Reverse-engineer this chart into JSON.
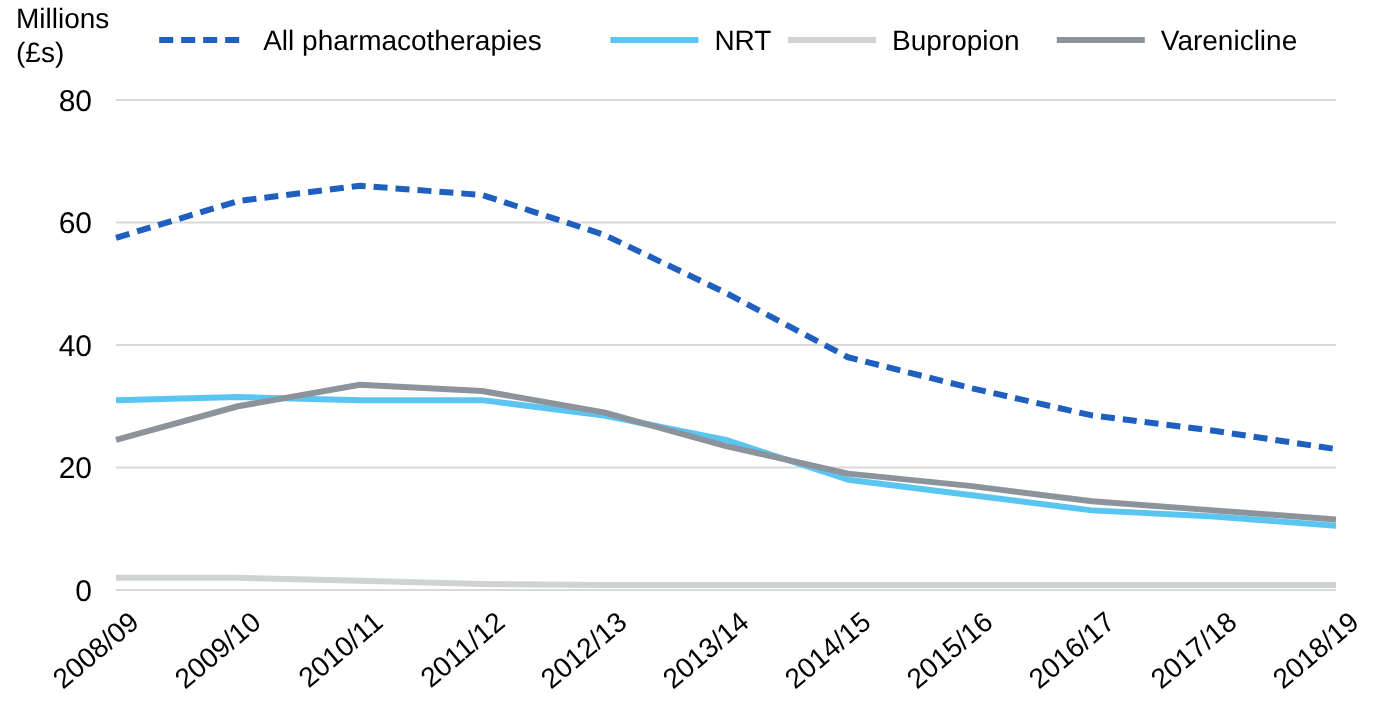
{
  "chart_data": {
    "type": "line",
    "ylabel": "Millions (£s)",
    "categories": [
      "2008/09",
      "2009/10",
      "2010/11",
      "2011/12",
      "2012/13",
      "2013/14",
      "2014/15",
      "2015/16",
      "2016/17",
      "2017/18",
      "2018/19"
    ],
    "series": [
      {
        "name": "All pharmacotherapies",
        "color": "#1f5fbf",
        "line_style": "dashed",
        "values": [
          57.5,
          63.5,
          66,
          64.5,
          58,
          48.5,
          38,
          33,
          28.5,
          26,
          23
        ]
      },
      {
        "name": "NRT",
        "color": "#5bc5f2",
        "values": [
          31,
          31.5,
          31,
          31,
          28.5,
          24.5,
          18,
          15.5,
          13,
          12,
          10.5
        ]
      },
      {
        "name": "Bupropion",
        "color": "#d0d3d4",
        "values": [
          2,
          2,
          1.5,
          1,
          0.8,
          0.8,
          0.8,
          0.8,
          0.8,
          0.8,
          0.8
        ]
      },
      {
        "name": "Varenicline",
        "color": "#8c939b",
        "values": [
          24.5,
          30,
          33.5,
          32.5,
          29,
          23.5,
          19,
          17,
          14.5,
          13,
          11.5
        ]
      }
    ],
    "ylim": [
      0,
      80
    ],
    "yticks": [
      0,
      20,
      40,
      60,
      80
    ],
    "grid": "y",
    "legend": "top",
    "marker": "none"
  }
}
